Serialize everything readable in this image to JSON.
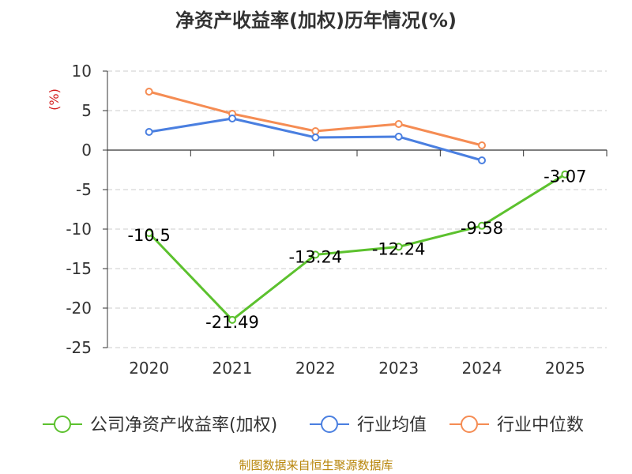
{
  "chart_data": {
    "type": "line",
    "title": "净资产收益率(加权)历年情况(%)",
    "ylabel": "(%)",
    "xlabel": "",
    "categories": [
      "2020",
      "2021",
      "2022",
      "2023",
      "2024",
      "2025"
    ],
    "ylim": [
      -25,
      10
    ],
    "yticks": [
      10,
      5,
      0,
      -5,
      -10,
      -15,
      -20,
      -25
    ],
    "grid": true,
    "legend_position": "bottom",
    "series": [
      {
        "name": "公司净资产收益率(加权)",
        "color": "#5cc12e",
        "values": [
          -10.5,
          -21.49,
          -13.24,
          -12.24,
          -9.58,
          -3.07
        ],
        "labels": [
          "-10.5",
          "-21.49",
          "-13.24",
          "-12.24",
          "-9.58",
          "-3.07"
        ]
      },
      {
        "name": "行业均值",
        "color": "#4a7fe0",
        "values": [
          2.3,
          4.0,
          1.6,
          1.7,
          -1.3,
          null
        ]
      },
      {
        "name": "行业中位数",
        "color": "#f58c53",
        "values": [
          7.4,
          4.6,
          2.4,
          3.3,
          0.6,
          null
        ]
      }
    ]
  },
  "source": "制图数据来自恒生聚源数据库"
}
